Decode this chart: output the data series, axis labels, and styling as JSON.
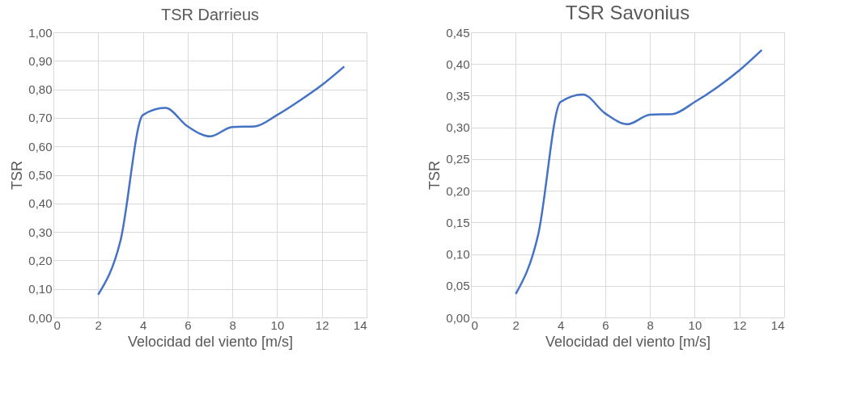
{
  "chart_data": [
    {
      "type": "line",
      "title": "TSR Darrieus",
      "xlabel": "Velocidad del viento [m/s]",
      "ylabel": "TSR",
      "x": [
        2,
        3,
        4,
        5,
        6,
        7,
        8,
        9,
        10,
        11,
        12,
        13
      ],
      "series": [
        {
          "color": "#4472c4",
          "values": [
            0.08,
            0.27,
            0.71,
            0.735,
            0.67,
            0.635,
            0.668,
            0.67,
            0.71,
            0.76,
            0.815,
            0.88
          ]
        }
      ],
      "xlim": [
        0,
        14
      ],
      "xticks": [
        0,
        2,
        4,
        6,
        8,
        10,
        12,
        14
      ],
      "ylim": [
        0,
        1
      ],
      "yticks": [
        {
          "value": 0,
          "label": "0,00"
        },
        {
          "value": 0.1,
          "label": "0,10"
        },
        {
          "value": 0.2,
          "label": "0,20"
        },
        {
          "value": 0.3,
          "label": "0,30"
        },
        {
          "value": 0.4,
          "label": "0,40"
        },
        {
          "value": 0.5,
          "label": "0,50"
        },
        {
          "value": 0.6,
          "label": "0,60"
        },
        {
          "value": 0.7,
          "label": "0,70"
        },
        {
          "value": 0.8,
          "label": "0,80"
        },
        {
          "value": 0.9,
          "label": "0,90"
        },
        {
          "value": 1,
          "label": "1,00"
        }
      ],
      "grid": true,
      "legend": false,
      "marker": "none",
      "line_style": "solid"
    },
    {
      "type": "line",
      "title": "TSR Savonius",
      "xlabel": "Velocidad del viento [m/s]",
      "ylabel": "TSR",
      "x": [
        2,
        3,
        4,
        5,
        6,
        7,
        8,
        9,
        10,
        11,
        12,
        13
      ],
      "series": [
        {
          "color": "#4472c4",
          "values": [
            0.037,
            0.13,
            0.34,
            0.352,
            0.322,
            0.305,
            0.32,
            0.321,
            0.34,
            0.363,
            0.39,
            0.422
          ]
        }
      ],
      "xlim": [
        0,
        14
      ],
      "xticks": [
        0,
        2,
        4,
        6,
        8,
        10,
        12,
        14
      ],
      "ylim": [
        0,
        0.45
      ],
      "yticks": [
        {
          "value": 0,
          "label": "0,00"
        },
        {
          "value": 0.05,
          "label": "0,05"
        },
        {
          "value": 0.1,
          "label": "0,10"
        },
        {
          "value": 0.15,
          "label": "0,15"
        },
        {
          "value": 0.2,
          "label": "0,20"
        },
        {
          "value": 0.25,
          "label": "0,25"
        },
        {
          "value": 0.3,
          "label": "0,30"
        },
        {
          "value": 0.35,
          "label": "0,35"
        },
        {
          "value": 0.4,
          "label": "0,40"
        },
        {
          "value": 0.45,
          "label": "0,45"
        }
      ],
      "grid": true,
      "legend": false,
      "marker": "none",
      "line_style": "solid"
    }
  ]
}
